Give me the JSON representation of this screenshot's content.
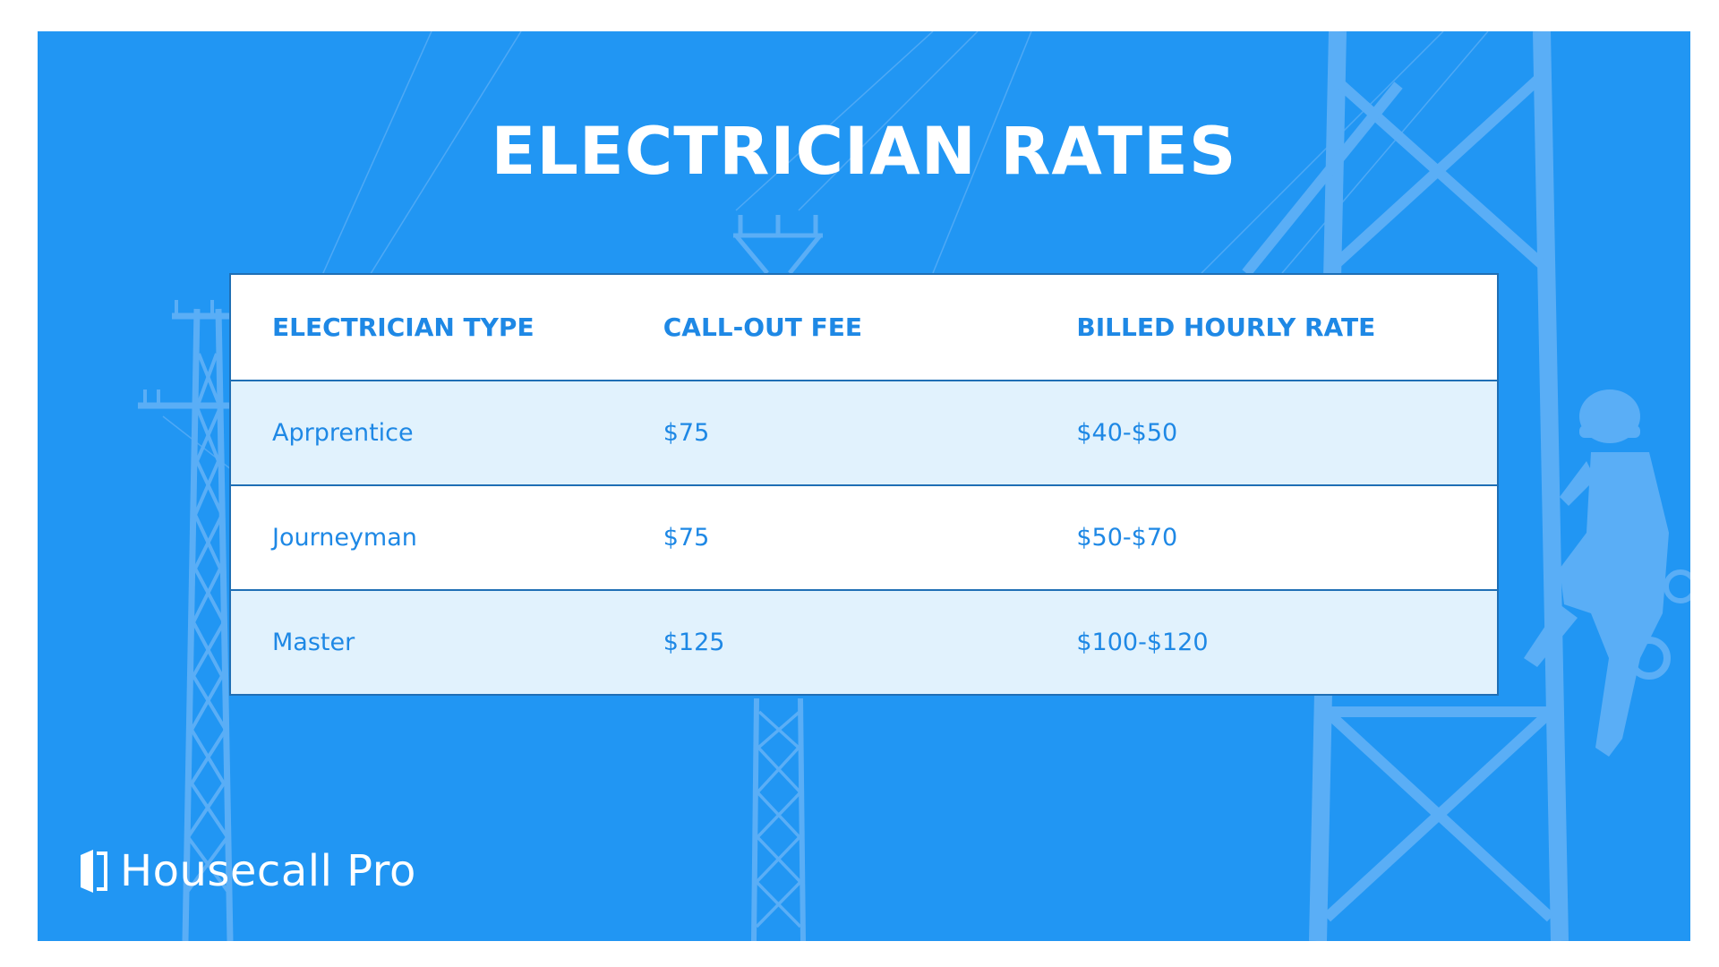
{
  "title": "ELECTRICIAN RATES",
  "table": {
    "headers": [
      "ELECTRICIAN TYPE",
      "CALL-OUT FEE",
      "BILLED HOURLY RATE"
    ],
    "rows": [
      {
        "type": "Aprprentice",
        "fee": "$75",
        "rate": "$40-$50"
      },
      {
        "type": "Journeyman",
        "fee": "$75",
        "rate": "$50-$70"
      },
      {
        "type": "Master",
        "fee": "$125",
        "rate": "$100-$120"
      }
    ]
  },
  "brand": {
    "name": "Housecall Pro",
    "logo_icon": "door-icon"
  },
  "colors": {
    "background": "#2196f3",
    "accent_text": "#1e88e5",
    "alt_row": "#e1f2fd",
    "border": "#1f6fb5",
    "silhouette": "#5aaef6"
  }
}
